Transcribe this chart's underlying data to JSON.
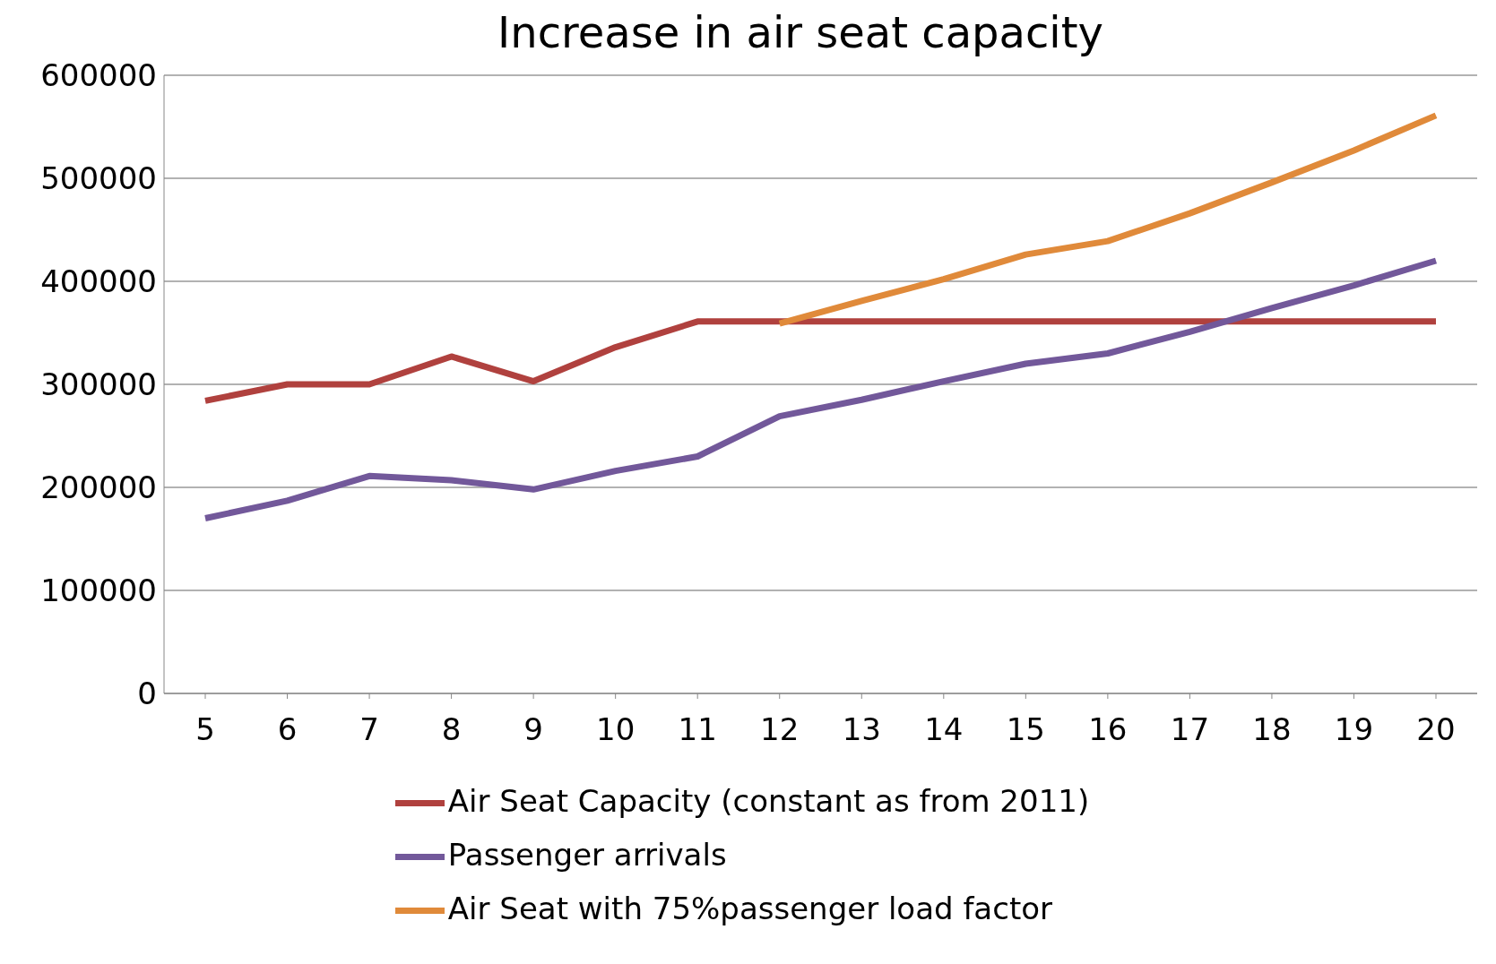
{
  "chart_data": {
    "type": "line",
    "title": "Increase in air seat capacity",
    "categories": [
      "5",
      "6",
      "7",
      "8",
      "9",
      "10",
      "11",
      "12",
      "13",
      "14",
      "15",
      "16",
      "17",
      "18",
      "19",
      "20"
    ],
    "series": [
      {
        "name": "Air Seat Capacity (constant as from 2011)",
        "color": "#b0413e",
        "values": [
          284000,
          300000,
          300000,
          327000,
          303000,
          336000,
          361000,
          361000,
          361000,
          361000,
          361000,
          361000,
          361000,
          361000,
          361000,
          361000
        ]
      },
      {
        "name": "Passenger arrivals",
        "color": "#72589a",
        "values": [
          170000,
          187000,
          211000,
          207000,
          198000,
          216000,
          230000,
          269000,
          285000,
          303000,
          320000,
          330000,
          351000,
          374000,
          396000,
          420000
        ]
      },
      {
        "name": "Air Seat with 75%passenger load factor",
        "color": "#e08a3a",
        "values": [
          null,
          null,
          null,
          null,
          null,
          null,
          null,
          359000,
          381000,
          402000,
          426000,
          439000,
          466000,
          496000,
          527000,
          561000
        ]
      }
    ],
    "ylim": [
      0,
      600000
    ],
    "yticks": [
      0,
      100000,
      200000,
      300000,
      400000,
      500000,
      600000
    ],
    "grid": "y",
    "legend": "bottom",
    "marker": "none",
    "line_style": "solid"
  }
}
